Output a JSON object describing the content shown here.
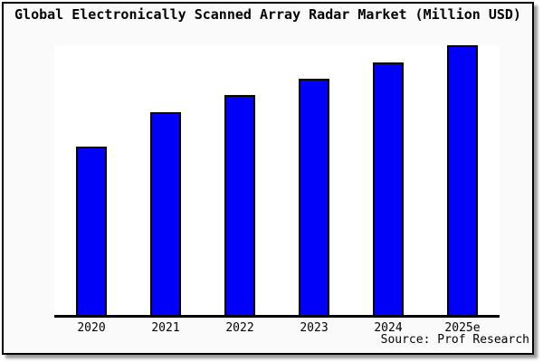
{
  "chart_data": {
    "type": "bar",
    "title": "Global Electronically Scanned Array Radar Market (Million USD)",
    "categories": [
      "2020",
      "2021",
      "2022",
      "2023",
      "2024",
      "2025e"
    ],
    "values": [
      62.5,
      75,
      81.5,
      87.5,
      93.5,
      100
    ],
    "value_note": "No y-axis ticks or value labels shown; values are relative bar heights as % of the tallest (2025e) bar",
    "xlabel": "",
    "ylabel": "",
    "ylim": [
      0,
      100
    ],
    "grid": false,
    "legend": false,
    "colors": {
      "bar_fill": "#0000fa",
      "bar_border": "#000000",
      "axis": "#000000",
      "plot_background": "#ffffff",
      "chart_background": "#fafafa",
      "frame_border": "#000000",
      "shadow": "#999999",
      "text": "#000000"
    }
  },
  "source": {
    "text": "Source: Prof Research"
  }
}
